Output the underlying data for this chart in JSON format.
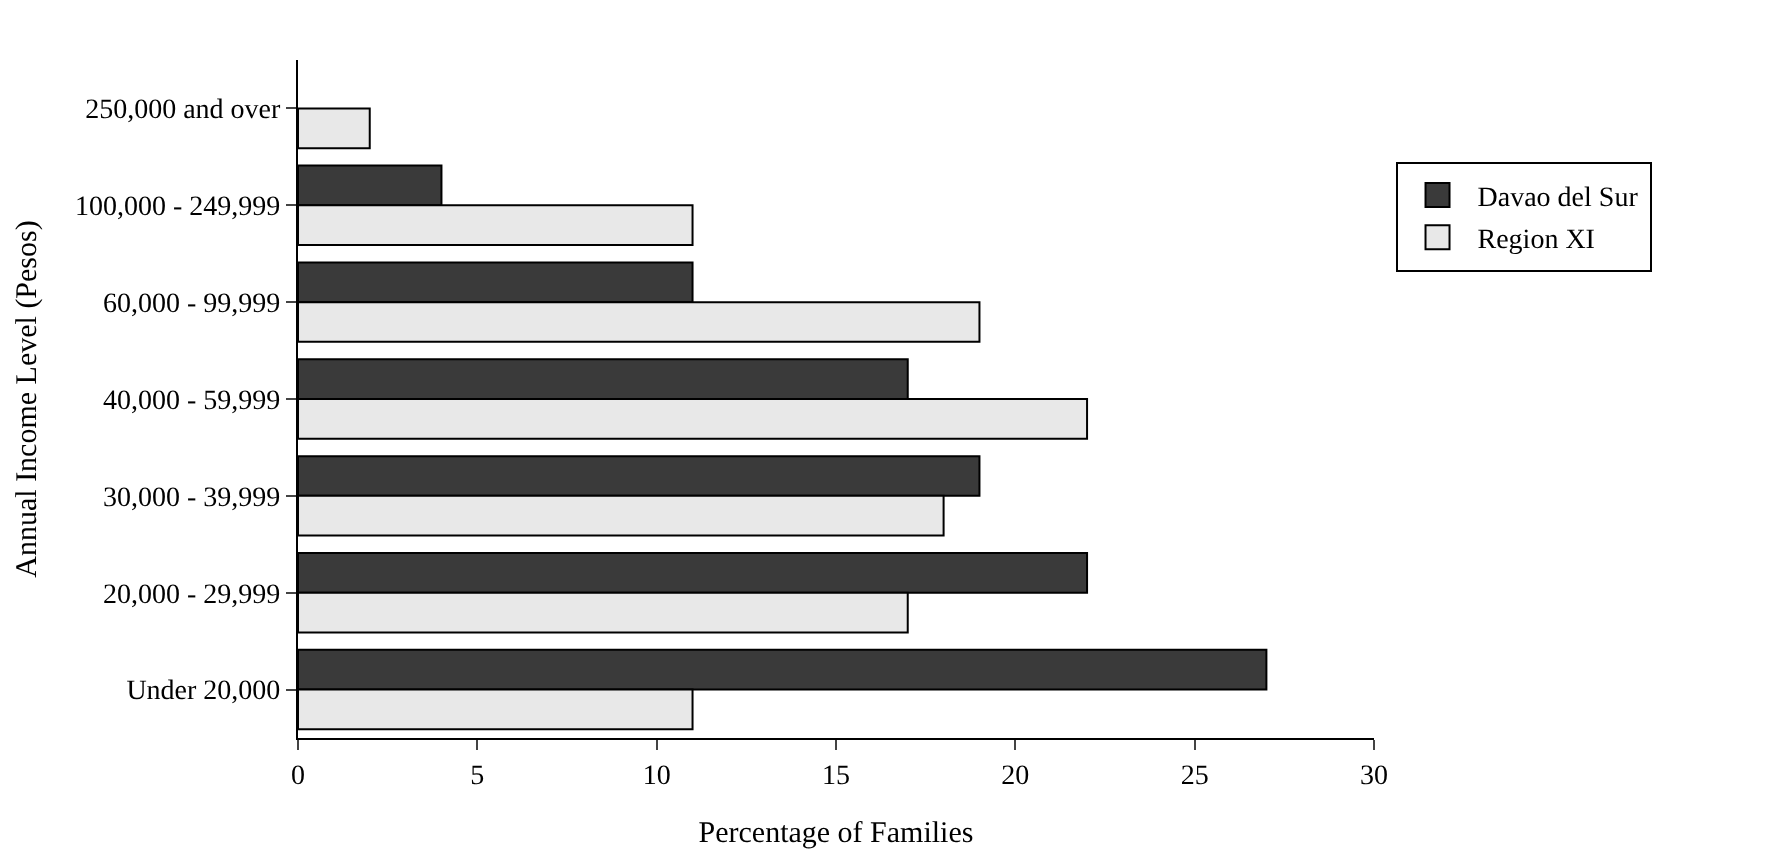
{
  "chart_data": {
    "type": "bar",
    "orientation": "horizontal",
    "xlabel": "Percentage of Families",
    "ylabel": "Annual Income Level (Pesos)",
    "categories": [
      "250,000 and over",
      "100,000 - 249,999",
      "60,000 - 99,999",
      "40,000 - 59,999",
      "30,000 - 39,999",
      "20,000 - 29,999",
      "Under 20,000"
    ],
    "series": [
      {
        "name": "Davao del Sur",
        "color": "#3a3a3a",
        "values": [
          null,
          4,
          11,
          17,
          19,
          22,
          27
        ]
      },
      {
        "name": "Region XI",
        "color": "#e8e8e8",
        "values": [
          2,
          11,
          19,
          22,
          18,
          17,
          11
        ]
      }
    ],
    "xlim": [
      0,
      30
    ],
    "xticks": [
      0,
      5,
      10,
      15,
      20,
      25,
      30
    ],
    "legend": "right"
  }
}
